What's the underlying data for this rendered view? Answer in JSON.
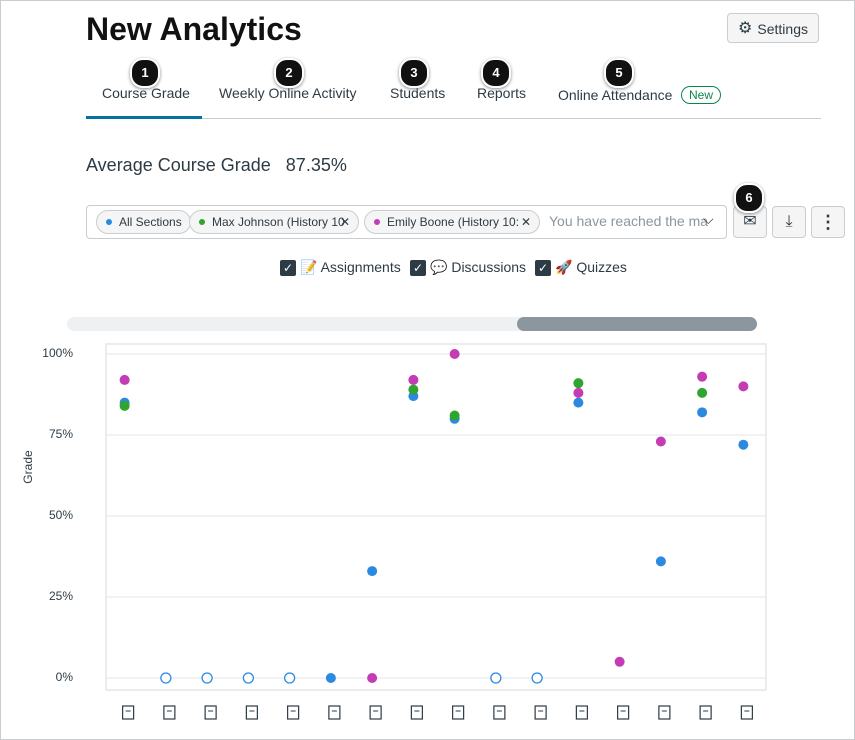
{
  "header": {
    "title": "New Analytics",
    "settings": "Settings"
  },
  "tabs": [
    {
      "label": "Course Grade",
      "callout": 1
    },
    {
      "label": "Weekly Online Activity",
      "callout": 2
    },
    {
      "label": "Students",
      "callout": 3
    },
    {
      "label": "Reports",
      "callout": 4
    },
    {
      "label": "Online Attendance",
      "callout": 5,
      "badge": "New"
    }
  ],
  "summary": {
    "label": "Average Course Grade",
    "value": "87.35%"
  },
  "filter": {
    "placeholder": "You have reached the ma",
    "message_callout": 6
  },
  "toggles": [
    "Assignments",
    "Discussions",
    "Quizzes"
  ],
  "chart_data": {
    "type": "scatter",
    "ylabel": "Grade",
    "categories": [
      null,
      null,
      null,
      null,
      null,
      null,
      null,
      null,
      null,
      null,
      null,
      null,
      null,
      null,
      null,
      null
    ],
    "ylim": [
      0,
      100
    ],
    "yticks": [
      {
        "value": 0,
        "label": "0%"
      },
      {
        "value": 25,
        "label": "25%"
      },
      {
        "value": 50,
        "label": "50%"
      },
      {
        "value": 75,
        "label": "75%"
      },
      {
        "value": 100,
        "label": "100%"
      }
    ],
    "grid": true,
    "series": [
      {
        "name": "All Sections",
        "color": "#2b8ae0",
        "values": [
          85,
          0,
          0,
          0,
          0,
          0,
          33,
          87,
          80,
          0,
          0,
          85,
          null,
          36,
          82,
          72
        ],
        "hollow": [
          false,
          true,
          true,
          true,
          true,
          false,
          false,
          false,
          false,
          true,
          true,
          false,
          false,
          false,
          false,
          false
        ]
      },
      {
        "name": "Max Johnson (History 10",
        "color": "#2ea52e",
        "values": [
          84,
          null,
          null,
          null,
          null,
          null,
          null,
          89,
          81,
          null,
          null,
          91,
          null,
          null,
          88,
          null
        ]
      },
      {
        "name": "Emily Boone (History 10:",
        "color": "#c43cb3",
        "values": [
          92,
          null,
          null,
          null,
          null,
          null,
          0,
          92,
          100,
          null,
          null,
          88,
          5,
          73,
          93,
          90
        ]
      }
    ]
  }
}
